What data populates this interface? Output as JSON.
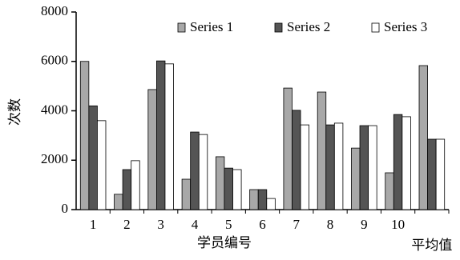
{
  "chart_data": {
    "type": "bar",
    "x_label": "学员编号",
    "y_label": "次数",
    "categories": [
      "1",
      "2",
      "3",
      "4",
      "5",
      "6",
      "7",
      "8",
      "9",
      "10",
      "平均值"
    ],
    "series": [
      {
        "name": "Series 1",
        "color": "#a8a8a8",
        "values": [
          6000,
          620,
          4860,
          1230,
          2140,
          810,
          4920,
          4760,
          2490,
          1490,
          5830
        ]
      },
      {
        "name": "Series 2",
        "color": "#555555",
        "values": [
          4200,
          1620,
          6020,
          3140,
          1680,
          810,
          4020,
          3430,
          3400,
          3850,
          2850
        ]
      },
      {
        "name": "Series 3",
        "color": "#ffffff",
        "values": [
          3600,
          1980,
          5900,
          3040,
          1620,
          450,
          3430,
          3500,
          3400,
          3760,
          2850
        ]
      }
    ],
    "ylim": [
      0,
      8000
    ],
    "yticks": [
      0,
      2000,
      4000,
      6000,
      8000
    ],
    "grid": false,
    "legend": "top-right"
  }
}
